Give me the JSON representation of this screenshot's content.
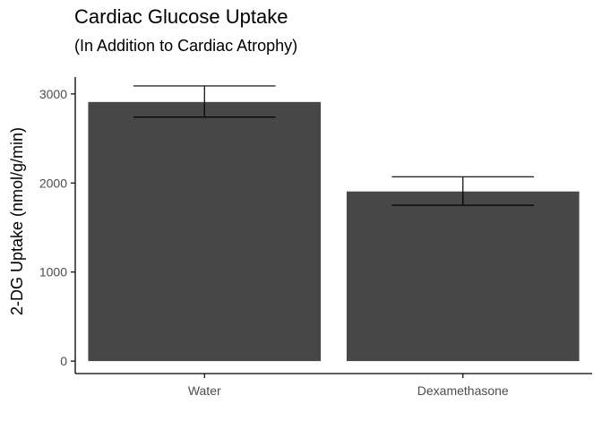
{
  "chart_data": {
    "type": "bar",
    "title": "Cardiac Glucose Uptake",
    "subtitle": "(In Addition to Cardiac Atrophy)",
    "xlabel": "",
    "ylabel": "2-DG Uptake (nmol/g/min)",
    "categories": [
      "Water",
      "Dexamethasone"
    ],
    "values": [
      2910,
      1905
    ],
    "error_low": [
      2740,
      1750
    ],
    "error_high": [
      3090,
      2070
    ],
    "ylim": [
      -140,
      3190
    ],
    "yticks": [
      0,
      1000,
      2000,
      3000
    ],
    "grid": false,
    "legend": "none",
    "bar_color": "#474747",
    "error_bar_color": "#000000"
  }
}
